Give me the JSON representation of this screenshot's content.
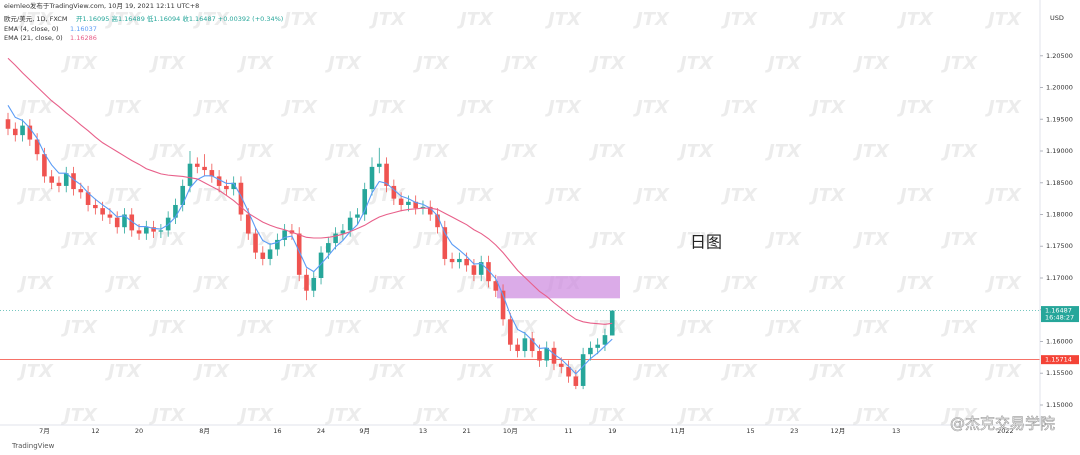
{
  "chart_data": {
    "type": "candlestick",
    "header": {
      "publisher": "eiemleo发布于TradingView.com, 10月 19, 2021 12:11 UTC+8",
      "symbol": "欧元/美元, 1D, FXCM",
      "ohlc_text": "开1.16095 高1.16489 低1.16094 收1.16487 +0.00392 (+0.34%)"
    },
    "currency": "USD",
    "annotation": "日图",
    "watermark": "JTX",
    "credit": "@杰克交易学院",
    "footer_brand": "TradingView",
    "countdown": "16:48:27",
    "up_color": "#26a69a",
    "down_color": "#ef5350",
    "ylim": [
      1.14685,
      1.21378
    ],
    "yticks": [
      {
        "value": 1.205,
        "label": "1.20500"
      },
      {
        "value": 1.2,
        "label": "1.20000"
      },
      {
        "value": 1.195,
        "label": "1.19500"
      },
      {
        "value": 1.19,
        "label": "1.19000"
      },
      {
        "value": 1.185,
        "label": "1.18500"
      },
      {
        "value": 1.18,
        "label": "1.18000"
      },
      {
        "value": 1.175,
        "label": "1.17500"
      },
      {
        "value": 1.17,
        "label": "1.17000"
      },
      {
        "value": 1.165,
        "label": "1.16500"
      },
      {
        "value": 1.16,
        "label": "1.16000"
      },
      {
        "value": 1.155,
        "label": "1.15500"
      },
      {
        "value": 1.15,
        "label": "1.15000"
      }
    ],
    "support_line": {
      "value": 1.15714,
      "color": "#f44336"
    },
    "zone": {
      "low": 1.1668,
      "high": 1.1703,
      "color": "#cf8fe0"
    },
    "categories": [
      null,
      null,
      null,
      null,
      null,
      "7月",
      null,
      null,
      null,
      null,
      null,
      null,
      "12",
      null,
      null,
      null,
      null,
      null,
      "20",
      null,
      null,
      null,
      null,
      null,
      null,
      null,
      null,
      "8月",
      null,
      null,
      null,
      null,
      null,
      null,
      null,
      null,
      null,
      "16",
      null,
      null,
      null,
      null,
      null,
      "24",
      null,
      null,
      null,
      null,
      null,
      "9月",
      null,
      null,
      null,
      null,
      null,
      null,
      null,
      "13",
      null,
      null,
      null,
      null,
      null,
      "21",
      null,
      null,
      null,
      null,
      null,
      "10月",
      null,
      null,
      null,
      null,
      null,
      null,
      null,
      "11",
      null,
      null,
      null,
      null,
      null,
      "19",
      null,
      null,
      null,
      null,
      null,
      null,
      null,
      null,
      "11月",
      null,
      null,
      null,
      null,
      null,
      null,
      null,
      null,
      null,
      "15",
      null,
      null,
      null,
      null,
      null,
      "23",
      null,
      null,
      null,
      null,
      null,
      "12月",
      null,
      null,
      null,
      null,
      null,
      null,
      null,
      "13",
      null,
      null,
      null,
      null,
      null,
      null,
      null,
      null,
      null,
      null,
      null,
      null,
      null,
      null,
      "2022"
    ],
    "open": [
      1.195,
      1.1935,
      1.1925,
      1.194,
      1.1918,
      1.1895,
      1.186,
      1.185,
      1.1845,
      1.1865,
      1.184,
      1.1835,
      1.1815,
      1.181,
      1.18,
      1.1795,
      1.178,
      1.18,
      1.1775,
      1.177,
      1.178,
      1.1773,
      1.1775,
      1.1795,
      1.1815,
      1.1845,
      1.188,
      1.1875,
      1.187,
      1.186,
      1.1845,
      1.184,
      1.185,
      1.18,
      1.177,
      1.174,
      1.173,
      1.1745,
      1.176,
      1.1775,
      1.177,
      1.1705,
      1.168,
      1.17,
      1.174,
      1.1755,
      1.177,
      1.1775,
      1.1795,
      1.18,
      1.184,
      1.1875,
      1.188,
      1.1845,
      1.1825,
      1.1815,
      1.182,
      1.181,
      1.1812,
      1.18,
      1.178,
      1.173,
      1.1725,
      1.173,
      1.172,
      1.1705,
      1.1725,
      1.1695,
      1.168,
      1.1635,
      1.1595,
      1.1585,
      1.1605,
      1.1585,
      1.157,
      1.159,
      1.1565,
      1.156,
      1.1545,
      1.153,
      1.158,
      1.159,
      1.1595,
      1.16095,
      null,
      null,
      null,
      null,
      null,
      null,
      null,
      null,
      null,
      null,
      null,
      null,
      null,
      null,
      null,
      null,
      null,
      null,
      null,
      null,
      null,
      null,
      null,
      null,
      null,
      null,
      null,
      null,
      null,
      null,
      null,
      null,
      null,
      null,
      null,
      null,
      null,
      null,
      null,
      null,
      null,
      null,
      null,
      null,
      null,
      null,
      null,
      null,
      null,
      null,
      null,
      null,
      null,
      null
    ],
    "high": [
      1.196,
      1.1945,
      1.195,
      1.195,
      1.1928,
      1.1905,
      1.187,
      1.186,
      1.1875,
      1.1875,
      1.185,
      1.1845,
      1.1825,
      1.182,
      1.181,
      1.1805,
      1.181,
      1.181,
      1.1785,
      1.179,
      1.179,
      1.1785,
      1.1805,
      1.1825,
      1.1855,
      1.19,
      1.189,
      1.1895,
      1.188,
      1.187,
      1.1855,
      1.186,
      1.186,
      1.181,
      1.178,
      1.175,
      1.1755,
      1.177,
      1.1785,
      1.1785,
      1.178,
      1.1715,
      1.171,
      1.175,
      1.1765,
      1.178,
      1.1785,
      1.1805,
      1.181,
      1.185,
      1.189,
      1.1905,
      1.189,
      1.1855,
      1.1835,
      1.183,
      1.183,
      1.1822,
      1.1822,
      1.181,
      1.179,
      1.174,
      1.174,
      1.174,
      1.173,
      1.1735,
      1.1735,
      1.1705,
      1.169,
      1.1645,
      1.1605,
      1.1615,
      1.1615,
      1.1595,
      1.16,
      1.16,
      1.1575,
      1.157,
      1.1555,
      1.159,
      1.16,
      1.1605,
      1.162,
      1.16489,
      null,
      null,
      null,
      null,
      null,
      null,
      null,
      null,
      null,
      null,
      null,
      null,
      null,
      null,
      null,
      null,
      null,
      null,
      null,
      null,
      null,
      null,
      null,
      null,
      null,
      null,
      null,
      null,
      null,
      null,
      null,
      null,
      null,
      null,
      null,
      null,
      null,
      null,
      null,
      null,
      null,
      null,
      null,
      null,
      null,
      null,
      null,
      null,
      null,
      null,
      null,
      null,
      null,
      null
    ],
    "low": [
      1.1925,
      1.1915,
      1.1915,
      1.1908,
      1.1885,
      1.185,
      1.184,
      1.1835,
      1.1835,
      1.183,
      1.1825,
      1.1805,
      1.18,
      1.179,
      1.1785,
      1.177,
      1.177,
      1.1765,
      1.176,
      1.176,
      1.1763,
      1.1763,
      1.1765,
      1.1785,
      1.1805,
      1.1835,
      1.1865,
      1.186,
      1.185,
      1.1835,
      1.183,
      1.183,
      1.179,
      1.176,
      1.173,
      1.172,
      1.172,
      1.1735,
      1.175,
      1.176,
      1.1695,
      1.1665,
      1.167,
      1.169,
      1.173,
      1.1745,
      1.176,
      1.1765,
      1.1785,
      1.179,
      1.183,
      1.1865,
      1.1835,
      1.1815,
      1.1805,
      1.1805,
      1.18,
      1.18,
      1.179,
      1.177,
      1.172,
      1.1715,
      1.1715,
      1.171,
      1.1695,
      1.1695,
      1.1685,
      1.167,
      1.1625,
      1.1585,
      1.1575,
      1.1575,
      1.1575,
      1.156,
      1.156,
      1.1555,
      1.155,
      1.1535,
      1.1525,
      1.1525,
      1.157,
      1.158,
      1.1585,
      1.16094,
      null,
      null,
      null,
      null,
      null,
      null,
      null,
      null,
      null,
      null,
      null,
      null,
      null,
      null,
      null,
      null,
      null,
      null,
      null,
      null,
      null,
      null,
      null,
      null,
      null,
      null,
      null,
      null,
      null,
      null,
      null,
      null,
      null,
      null,
      null,
      null,
      null,
      null,
      null,
      null,
      null,
      null,
      null,
      null,
      null,
      null,
      null,
      null,
      null,
      null,
      null,
      null,
      null,
      null
    ],
    "close": [
      1.1935,
      1.1925,
      1.194,
      1.1918,
      1.1895,
      1.186,
      1.185,
      1.1845,
      1.1865,
      1.184,
      1.1835,
      1.1815,
      1.181,
      1.18,
      1.1795,
      1.178,
      1.18,
      1.1775,
      1.177,
      1.178,
      1.1773,
      1.1775,
      1.1795,
      1.1815,
      1.1845,
      1.188,
      1.1875,
      1.187,
      1.186,
      1.1845,
      1.184,
      1.185,
      1.18,
      1.177,
      1.174,
      1.173,
      1.1745,
      1.176,
      1.1775,
      1.177,
      1.1705,
      1.168,
      1.17,
      1.174,
      1.1755,
      1.177,
      1.1775,
      1.1795,
      1.18,
      1.184,
      1.1875,
      1.188,
      1.1845,
      1.1825,
      1.1815,
      1.182,
      1.181,
      1.1812,
      1.18,
      1.178,
      1.173,
      1.1725,
      1.173,
      1.172,
      1.1705,
      1.1725,
      1.1695,
      1.168,
      1.1635,
      1.1595,
      1.1585,
      1.1605,
      1.1585,
      1.157,
      1.159,
      1.1565,
      1.156,
      1.1545,
      1.153,
      1.158,
      1.159,
      1.1595,
      1.161,
      1.16487,
      null,
      null,
      null,
      null,
      null,
      null,
      null,
      null,
      null,
      null,
      null,
      null,
      null,
      null,
      null,
      null,
      null,
      null,
      null,
      null,
      null,
      null,
      null,
      null,
      null,
      null,
      null,
      null,
      null,
      null,
      null,
      null,
      null,
      null,
      null,
      null,
      null,
      null,
      null,
      null,
      null,
      null,
      null,
      null,
      null,
      null,
      null,
      null,
      null,
      null,
      null,
      null,
      null,
      null
    ],
    "series": [
      {
        "name": "EMA (4, close, 0)",
        "color": "#5b9cf6",
        "values": [
          1.1972,
          1.1953,
          1.1948,
          1.1936,
          1.192,
          1.1896,
          1.1878,
          1.1865,
          1.1865,
          1.1855,
          1.1847,
          1.1834,
          1.1824,
          1.1815,
          1.1807,
          1.1796,
          1.1798,
          1.1789,
          1.1781,
          1.1781,
          1.1778,
          1.1777,
          1.1784,
          1.1796,
          1.1816,
          1.1842,
          1.1855,
          1.1861,
          1.1861,
          1.1855,
          1.1849,
          1.1849,
          1.1829,
          1.1805,
          1.1779,
          1.1759,
          1.1753,
          1.1756,
          1.1764,
          1.1766,
          1.1742,
          1.1717,
          1.171,
          1.1722,
          1.1735,
          1.1749,
          1.1759,
          1.1773,
          1.1784,
          1.1806,
          1.1834,
          1.1852,
          1.1849,
          1.1839,
          1.1829,
          1.1825,
          1.1819,
          1.1816,
          1.181,
          1.1798,
          1.1771,
          1.1753,
          1.1744,
          1.1734,
          1.1722,
          1.1723,
          1.1712,
          1.1699,
          1.1673,
          1.1642,
          1.1619,
          1.1613,
          1.1602,
          1.1589,
          1.159,
          1.158,
          1.1572,
          1.1561,
          1.1549,
          1.1561,
          1.1573,
          1.1582,
          1.1593,
          1.16037,
          null,
          null,
          null,
          null,
          null,
          null,
          null,
          null,
          null,
          null,
          null,
          null,
          null,
          null,
          null,
          null,
          null,
          null,
          null,
          null,
          null,
          null,
          null,
          null,
          null,
          null,
          null,
          null,
          null,
          null,
          null,
          null,
          null,
          null,
          null,
          null,
          null,
          null,
          null,
          null,
          null,
          null,
          null,
          null,
          null,
          null,
          null,
          null,
          null,
          null,
          null,
          null,
          null,
          null
        ]
      },
      {
        "name": "EMA (21, close, 0)",
        "color": "#e8608a",
        "values": [
          1.2046,
          1.2035,
          1.2023,
          1.2012,
          1.2001,
          1.199,
          1.1979,
          1.197,
          1.196,
          1.1951,
          1.1941,
          1.1932,
          1.1922,
          1.1913,
          1.1906,
          1.1899,
          1.1892,
          1.1885,
          1.1879,
          1.1872,
          1.1868,
          1.1864,
          1.1862,
          1.1861,
          1.186,
          1.1858,
          1.1856,
          1.185,
          1.1844,
          1.1838,
          1.183,
          1.1822,
          1.1812,
          1.1802,
          1.1795,
          1.1788,
          1.1783,
          1.1779,
          1.1776,
          1.1772,
          1.1768,
          1.1764,
          1.1763,
          1.1763,
          1.1764,
          1.1766,
          1.1769,
          1.1773,
          1.1778,
          1.1783,
          1.179,
          1.1796,
          1.18,
          1.1803,
          1.1806,
          1.1808,
          1.1809,
          1.181,
          1.181,
          1.1808,
          1.1802,
          1.1796,
          1.179,
          1.1784,
          1.1776,
          1.177,
          1.1762,
          1.1752,
          1.174,
          1.1726,
          1.1712,
          1.1701,
          1.169,
          1.1679,
          1.1671,
          1.1661,
          1.1652,
          1.1643,
          1.1635,
          1.1631,
          1.1629,
          1.1628,
          1.1627,
          1.16286,
          null,
          null,
          null,
          null,
          null,
          null,
          null,
          null,
          null,
          null,
          null,
          null,
          null,
          null,
          null,
          null,
          null,
          null,
          null,
          null,
          null,
          null,
          null,
          null,
          null,
          null,
          null,
          null,
          null,
          null,
          null,
          null,
          null,
          null,
          null,
          null,
          null,
          null,
          null,
          null,
          null,
          null,
          null,
          null,
          null,
          null,
          null,
          null,
          null,
          null,
          null,
          null,
          null,
          null
        ]
      }
    ]
  }
}
